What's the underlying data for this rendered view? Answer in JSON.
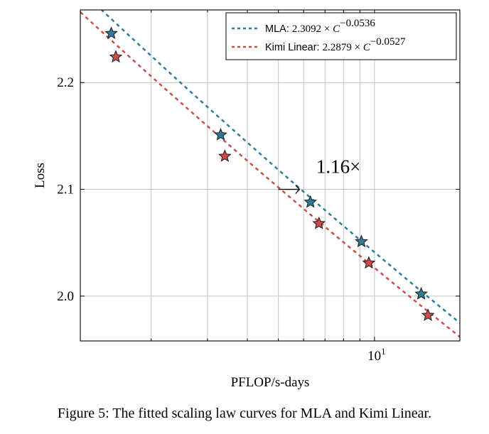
{
  "chart_data": {
    "type": "scatter",
    "title": "",
    "xlabel": "PFLOP/s-days",
    "ylabel": "Loss",
    "xscale": "log",
    "xlim": [
      1.2,
      18.5
    ],
    "ylim": [
      1.958,
      2.268
    ],
    "yticks": [
      2.0,
      2.1,
      2.2
    ],
    "ytick_labels": [
      "2.0",
      "2.1",
      "2.2"
    ],
    "xtick_base": "10",
    "xtick_exp": "1",
    "xminor": [
      2,
      3,
      4,
      5,
      6,
      7,
      8,
      9,
      20
    ],
    "grid": true,
    "legend_position": "top-right",
    "series": [
      {
        "name": "MLA",
        "coef": "2.3092",
        "exp": "−0.0536",
        "a": 2.3092,
        "b": -0.0536,
        "color": "#2e7b98",
        "x": [
          1.5,
          3.3,
          6.3,
          9.1,
          14.0
        ],
        "y": [
          2.246,
          2.151,
          2.088,
          2.051,
          2.002
        ]
      },
      {
        "name": "Kimi Linear",
        "coef": "2.2879",
        "exp": "−0.0527",
        "a": 2.2879,
        "b": -0.0527,
        "color": "#cc4c4c",
        "x": [
          1.55,
          3.4,
          6.7,
          9.6,
          14.7
        ],
        "y": [
          2.224,
          2.131,
          2.068,
          2.031,
          1.982
        ]
      }
    ],
    "annotation": {
      "text": "1.16×",
      "y": 2.1,
      "x_from": 5.0,
      "x_to": 5.84
    }
  },
  "caption": "Figure 5: The fitted scaling law curves for MLA and Kimi Linear."
}
